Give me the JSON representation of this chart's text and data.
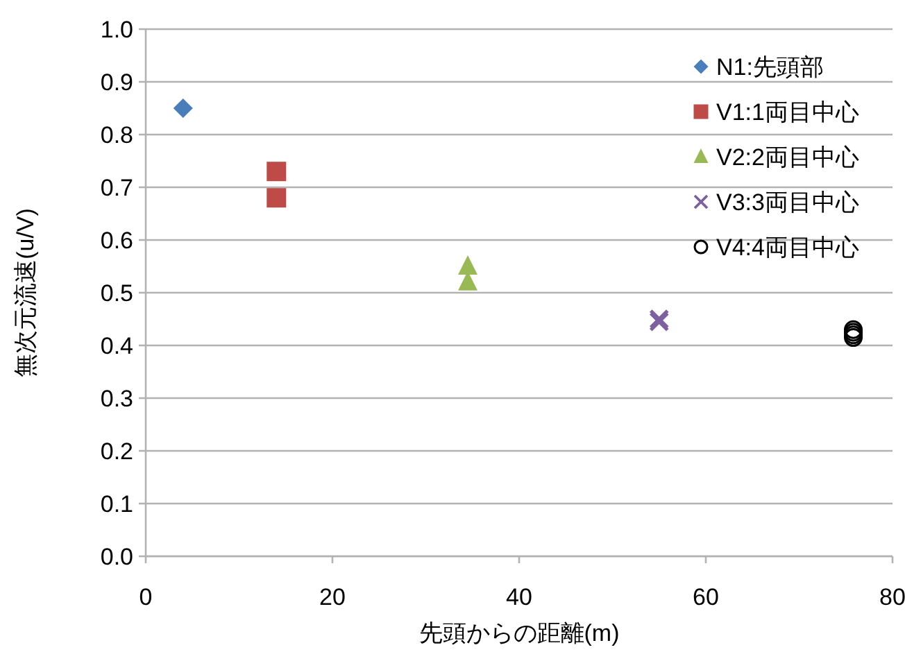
{
  "chart_data": {
    "type": "scatter",
    "xlabel": "先頭からの距離(m)",
    "ylabel": "無次元流速(u/V)",
    "xlim": [
      0,
      80
    ],
    "xticks": [
      0,
      20,
      40,
      60,
      80
    ],
    "ylim": [
      0,
      1
    ],
    "yticks": [
      {
        "value": 0,
        "label": "0.0"
      },
      0.1,
      0.2,
      0.3,
      0.4,
      0.5,
      0.6,
      0.7,
      0.8,
      0.9,
      {
        "value": 1,
        "label": "1.0"
      }
    ],
    "grid": "y",
    "legend": "top right",
    "series": [
      {
        "name": "N1:先頭部",
        "color": "#4a7ebb",
        "marker": "diamond",
        "x": [
          4
        ],
        "values": [
          0.85
        ]
      },
      {
        "name": "V1:1両目中心",
        "color": "#be4b48",
        "marker": "square",
        "x": [
          14,
          14
        ],
        "values": [
          0.68,
          0.73
        ]
      },
      {
        "name": "V2:2両目中心",
        "color": "#98b954",
        "marker": "triangle",
        "x": [
          34.5,
          34.5
        ],
        "values": [
          0.52,
          0.55
        ]
      },
      {
        "name": "V3:3両目中心",
        "color": "#7d60a0",
        "marker": "cross",
        "x": [
          55,
          55
        ],
        "values": [
          0.445,
          0.45
        ]
      },
      {
        "name": "V4:4両目中心",
        "color": "#000000",
        "marker": "circle",
        "x": [
          75.8,
          75.8,
          75.8,
          75.8
        ],
        "values": [
          0.415,
          0.42,
          0.425,
          0.43
        ]
      }
    ]
  }
}
